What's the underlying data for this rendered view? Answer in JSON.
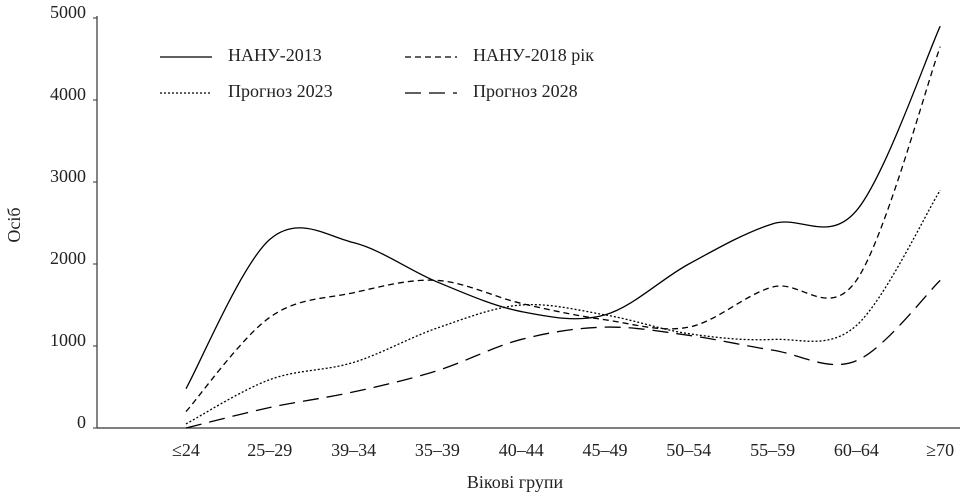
{
  "chart_data": {
    "type": "line",
    "xlabel": "Вікові групи",
    "ylabel": "Осіб",
    "categories": [
      "≤24",
      "25–29",
      "39–34",
      "35–39",
      "40–44",
      "45–49",
      "50–54",
      "55–59",
      "60–64",
      "≥70"
    ],
    "series": [
      {
        "name": "НАНУ-2013",
        "color": "#000000",
        "line_style": "solid",
        "values": [
          480,
          2300,
          2260,
          1780,
          1420,
          1380,
          2000,
          2490,
          2650,
          4900
        ]
      },
      {
        "name": "НАНУ-2018 рік",
        "color": "#000000",
        "line_style": "dashed",
        "values": [
          200,
          1350,
          1650,
          1800,
          1520,
          1320,
          1230,
          1720,
          1800,
          4650
        ]
      },
      {
        "name": "Прогноз 2023",
        "color": "#000000",
        "line_style": "dotted",
        "values": [
          50,
          590,
          800,
          1220,
          1500,
          1380,
          1150,
          1080,
          1250,
          2900
        ]
      },
      {
        "name": "Прогноз 2028",
        "color": "#000000",
        "line_style": "longdash",
        "values": [
          0,
          250,
          440,
          700,
          1080,
          1230,
          1130,
          950,
          820,
          1800
        ]
      }
    ],
    "ylim": [
      0,
      5000
    ],
    "yticks": [
      0,
      1000,
      2000,
      3000,
      4000,
      5000
    ],
    "grid": false,
    "legend": "upper left"
  }
}
